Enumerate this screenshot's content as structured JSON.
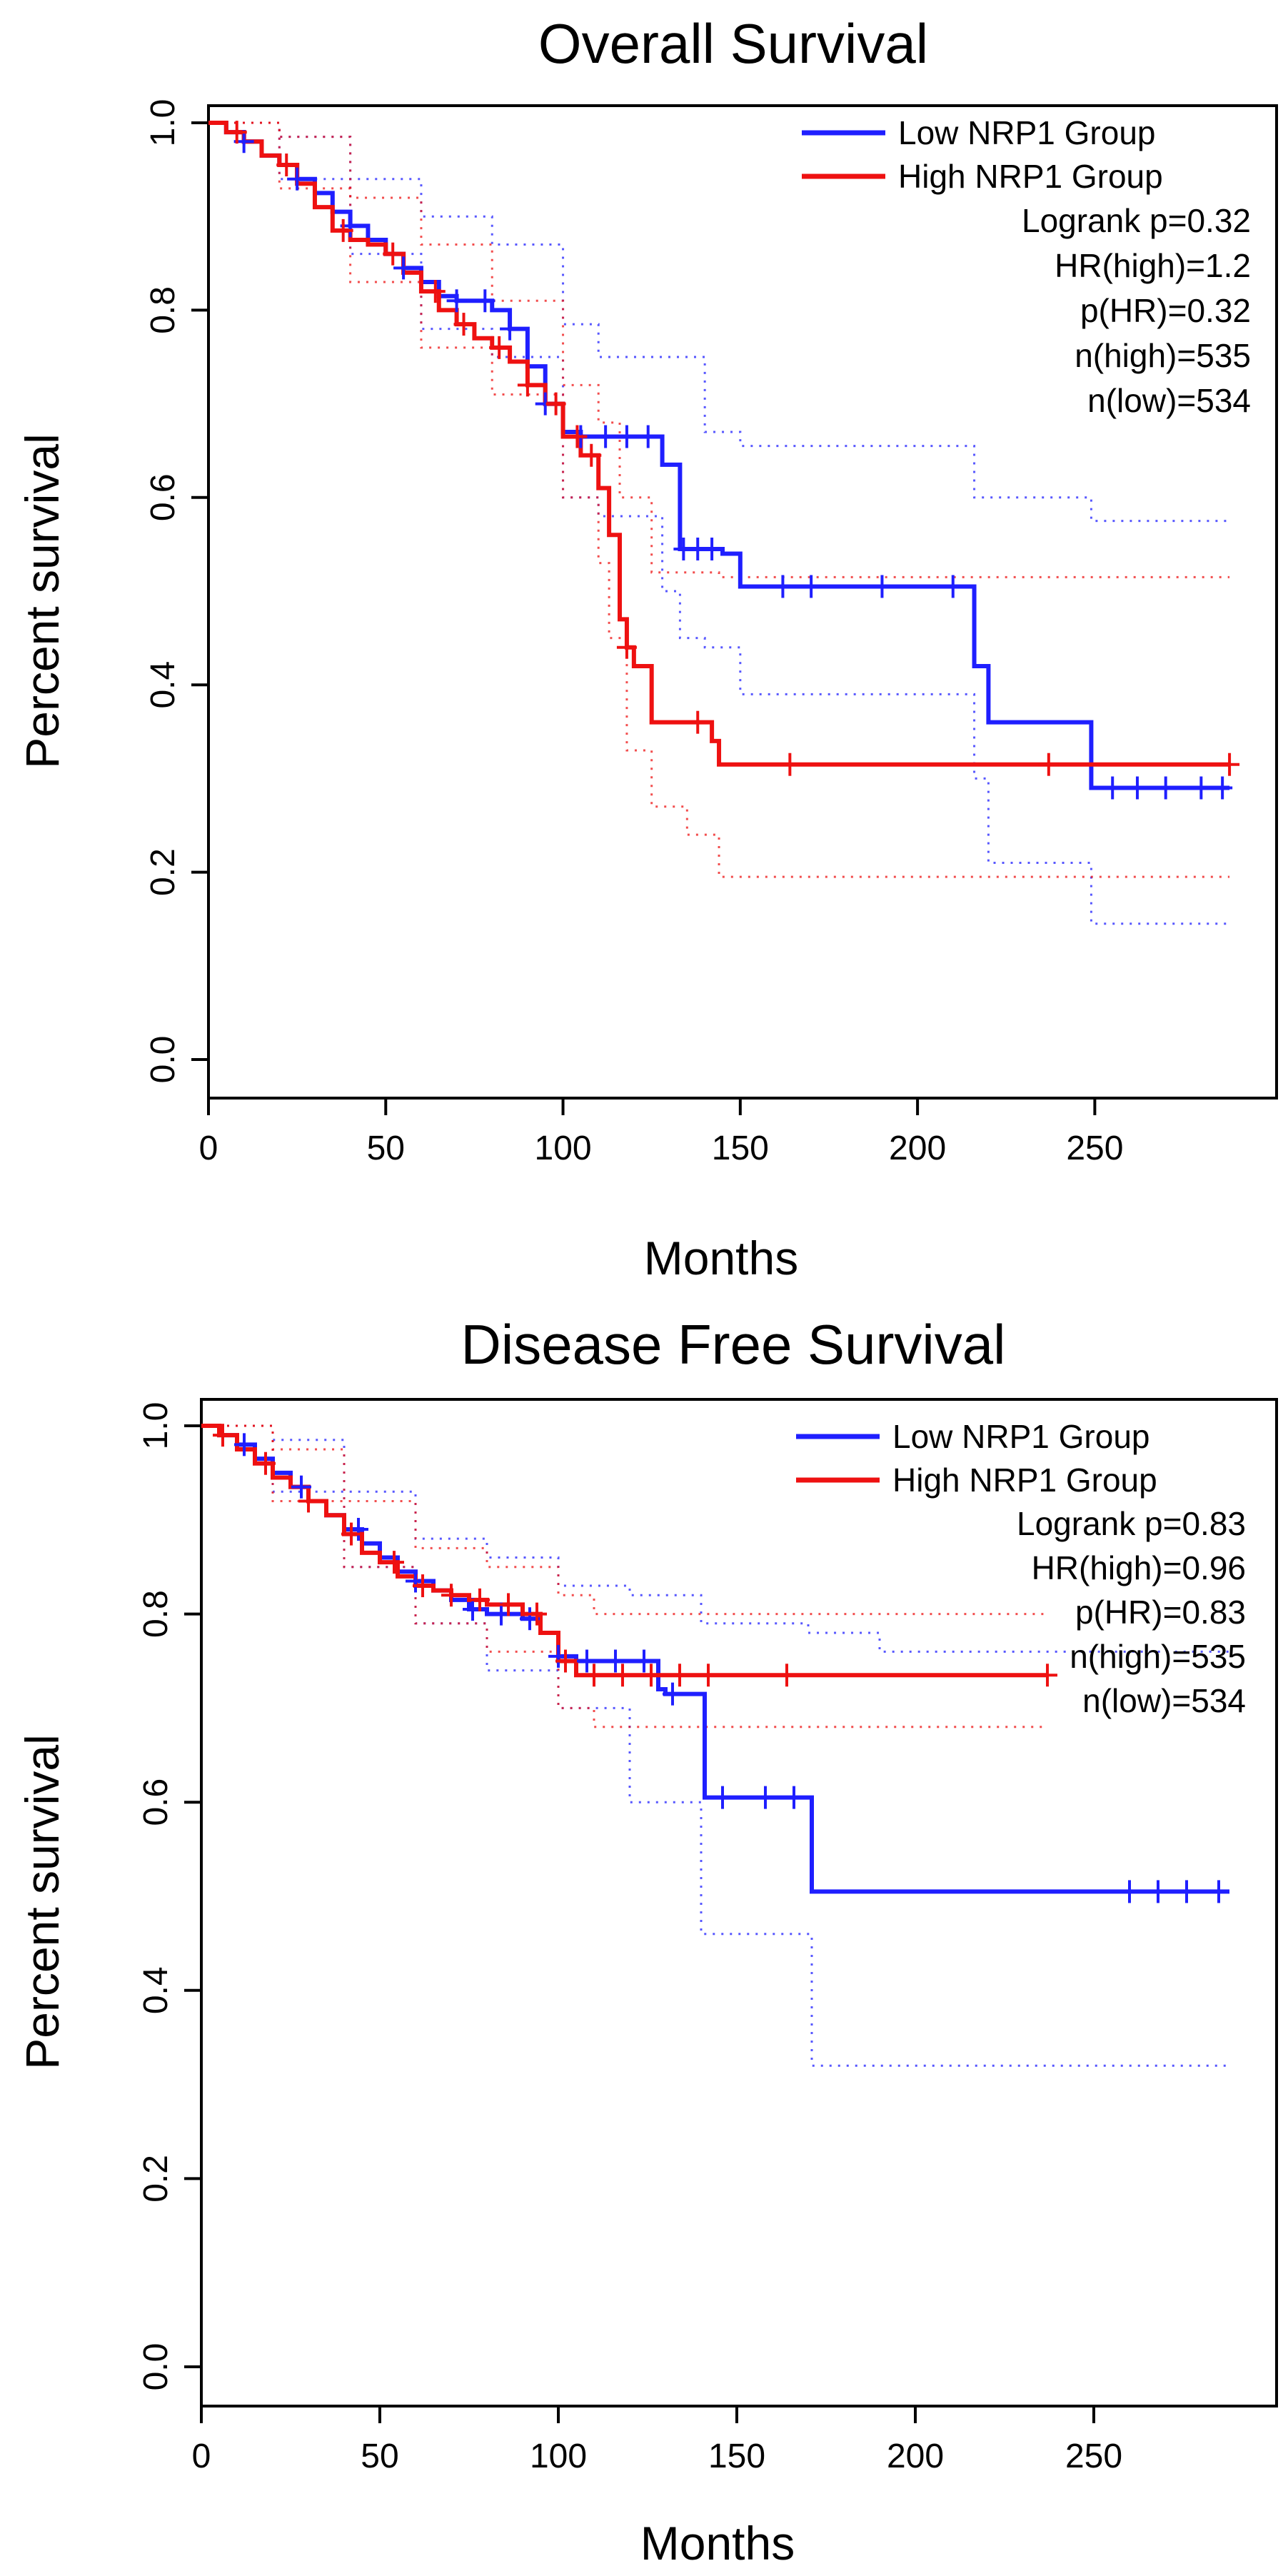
{
  "chart_data": [
    {
      "type": "line",
      "title": "Overall Survival",
      "xlabel": "Months",
      "ylabel": "Percent survival",
      "xlim": [
        0,
        290
      ],
      "ylim": [
        0,
        1.0
      ],
      "x_ticks": [
        "0",
        "50",
        "100",
        "150",
        "200",
        "250"
      ],
      "y_ticks": [
        "0.0",
        "0.2",
        "0.4",
        "0.6",
        "0.8",
        "1.0"
      ],
      "legend": [
        "Low NRP1 Group",
        "High NRP1 Group"
      ],
      "stats": [
        "Logrank p=0.32",
        "HR(high)=1.2",
        "p(HR)=0.32",
        "n(high)=535",
        "n(low)=534"
      ],
      "legend_position": "top-right",
      "series": [
        {
          "name": "Low NRP1 Group",
          "color": "#1f1fff",
          "x": [
            0,
            5,
            10,
            15,
            20,
            25,
            30,
            35,
            40,
            45,
            50,
            55,
            60,
            65,
            70,
            75,
            80,
            85,
            90,
            95,
            100,
            105,
            110,
            115,
            120,
            128,
            133,
            140,
            145,
            150,
            200,
            216,
            220,
            240,
            249,
            288
          ],
          "y": [
            1.0,
            0.99,
            0.98,
            0.965,
            0.955,
            0.94,
            0.925,
            0.905,
            0.89,
            0.875,
            0.86,
            0.845,
            0.83,
            0.815,
            0.81,
            0.81,
            0.8,
            0.78,
            0.74,
            0.7,
            0.67,
            0.665,
            0.665,
            0.665,
            0.665,
            0.635,
            0.545,
            0.545,
            0.54,
            0.505,
            0.505,
            0.42,
            0.36,
            0.36,
            0.29,
            0.29
          ],
          "censor_x": [
            10,
            25,
            40,
            55,
            70,
            78,
            85,
            95,
            105,
            112,
            118,
            124,
            134,
            138,
            142,
            162,
            170,
            190,
            210,
            255,
            262,
            270,
            280,
            286
          ],
          "ci_upper_x": [
            0,
            20,
            40,
            60,
            80,
            100,
            110,
            130,
            140,
            150,
            200,
            216,
            230,
            249,
            288
          ],
          "ci_upper_y": [
            1.0,
            0.985,
            0.94,
            0.9,
            0.87,
            0.785,
            0.75,
            0.75,
            0.67,
            0.655,
            0.655,
            0.6,
            0.6,
            0.575,
            0.575
          ],
          "ci_lower_x": [
            0,
            20,
            40,
            60,
            80,
            100,
            110,
            128,
            133,
            140,
            150,
            200,
            216,
            220,
            249,
            288
          ],
          "ci_lower_y": [
            1.0,
            0.94,
            0.86,
            0.78,
            0.75,
            0.6,
            0.58,
            0.5,
            0.45,
            0.44,
            0.39,
            0.39,
            0.3,
            0.21,
            0.145,
            0.145
          ]
        },
        {
          "name": "High NRP1 Group",
          "color": "#ee1111",
          "x": [
            0,
            5,
            10,
            15,
            20,
            25,
            30,
            35,
            40,
            45,
            50,
            55,
            60,
            65,
            70,
            75,
            80,
            85,
            90,
            95,
            100,
            105,
            110,
            113,
            116,
            118,
            120,
            125,
            135,
            142,
            144,
            288
          ],
          "y": [
            1.0,
            0.99,
            0.98,
            0.965,
            0.955,
            0.935,
            0.91,
            0.885,
            0.875,
            0.87,
            0.86,
            0.84,
            0.82,
            0.8,
            0.785,
            0.77,
            0.76,
            0.745,
            0.72,
            0.7,
            0.665,
            0.645,
            0.61,
            0.56,
            0.47,
            0.44,
            0.42,
            0.36,
            0.36,
            0.34,
            0.315,
            0.315
          ],
          "censor_x": [
            8,
            22,
            38,
            52,
            64,
            72,
            82,
            90,
            98,
            104,
            108,
            118,
            138,
            164,
            237,
            288
          ],
          "ci_upper_x": [
            0,
            20,
            40,
            60,
            80,
            100,
            110,
            116,
            125,
            144,
            288
          ],
          "ci_upper_y": [
            1.0,
            0.985,
            0.92,
            0.87,
            0.81,
            0.72,
            0.68,
            0.6,
            0.52,
            0.515,
            0.515
          ],
          "ci_lower_x": [
            0,
            20,
            40,
            60,
            80,
            100,
            110,
            113,
            118,
            125,
            135,
            144,
            288
          ],
          "ci_lower_y": [
            1.0,
            0.93,
            0.83,
            0.76,
            0.71,
            0.6,
            0.53,
            0.45,
            0.33,
            0.27,
            0.24,
            0.195,
            0.195
          ]
        }
      ]
    },
    {
      "type": "line",
      "title": "Disease Free Survival",
      "xlabel": "Months",
      "ylabel": "Percent survival",
      "xlim": [
        0,
        290
      ],
      "ylim": [
        0,
        1.0
      ],
      "x_ticks": [
        "0",
        "50",
        "100",
        "150",
        "200",
        "250"
      ],
      "y_ticks": [
        "0.0",
        "0.2",
        "0.4",
        "0.6",
        "0.8",
        "1.0"
      ],
      "legend": [
        "Low NRP1 Group",
        "High NRP1 Group"
      ],
      "stats": [
        "Logrank p=0.83",
        "HR(high)=0.96",
        "p(HR)=0.83",
        "n(high)=535",
        "n(low)=534"
      ],
      "legend_position": "top-right",
      "series": [
        {
          "name": "Low NRP1 Group",
          "color": "#1f1fff",
          "x": [
            0,
            5,
            10,
            15,
            20,
            25,
            30,
            35,
            40,
            45,
            50,
            55,
            60,
            65,
            70,
            75,
            80,
            85,
            90,
            95,
            100,
            105,
            120,
            128,
            130,
            140,
            141,
            170,
            171,
            288
          ],
          "y": [
            1.0,
            0.99,
            0.98,
            0.965,
            0.95,
            0.935,
            0.92,
            0.905,
            0.89,
            0.875,
            0.86,
            0.845,
            0.835,
            0.825,
            0.815,
            0.805,
            0.8,
            0.8,
            0.795,
            0.78,
            0.755,
            0.75,
            0.75,
            0.72,
            0.715,
            0.715,
            0.605,
            0.605,
            0.505,
            0.505
          ],
          "censor_x": [
            12,
            28,
            44,
            60,
            76,
            84,
            92,
            100,
            108,
            116,
            124,
            132,
            146,
            158,
            166,
            260,
            268,
            276,
            285
          ],
          "ci_upper_x": [
            0,
            20,
            40,
            60,
            80,
            100,
            120,
            140,
            170,
            190,
            230,
            288
          ],
          "ci_upper_y": [
            1.0,
            0.985,
            0.93,
            0.88,
            0.86,
            0.83,
            0.82,
            0.79,
            0.78,
            0.76,
            0.76,
            0.76
          ],
          "ci_lower_x": [
            0,
            20,
            40,
            60,
            80,
            100,
            120,
            140,
            171,
            288
          ],
          "ci_lower_y": [
            1.0,
            0.93,
            0.85,
            0.79,
            0.74,
            0.7,
            0.6,
            0.46,
            0.32,
            0.32
          ]
        },
        {
          "name": "High NRP1 Group",
          "color": "#ee1111",
          "x": [
            0,
            5,
            10,
            15,
            20,
            25,
            30,
            35,
            40,
            45,
            50,
            55,
            60,
            65,
            70,
            75,
            80,
            85,
            90,
            95,
            100,
            105,
            237
          ],
          "y": [
            1.0,
            0.99,
            0.975,
            0.96,
            0.945,
            0.935,
            0.92,
            0.905,
            0.885,
            0.865,
            0.855,
            0.84,
            0.83,
            0.825,
            0.82,
            0.815,
            0.81,
            0.81,
            0.8,
            0.78,
            0.75,
            0.735,
            0.735
          ],
          "censor_x": [
            6,
            18,
            30,
            42,
            54,
            62,
            70,
            78,
            86,
            94,
            102,
            110,
            118,
            126,
            134,
            142,
            164,
            237
          ],
          "ci_upper_x": [
            0,
            20,
            40,
            60,
            80,
            100,
            110,
            237
          ],
          "ci_upper_y": [
            1.0,
            0.975,
            0.92,
            0.87,
            0.85,
            0.82,
            0.8,
            0.8
          ],
          "ci_lower_x": [
            0,
            20,
            40,
            60,
            80,
            100,
            110,
            237
          ],
          "ci_lower_y": [
            1.0,
            0.92,
            0.85,
            0.79,
            0.76,
            0.7,
            0.68,
            0.68
          ]
        }
      ]
    }
  ]
}
